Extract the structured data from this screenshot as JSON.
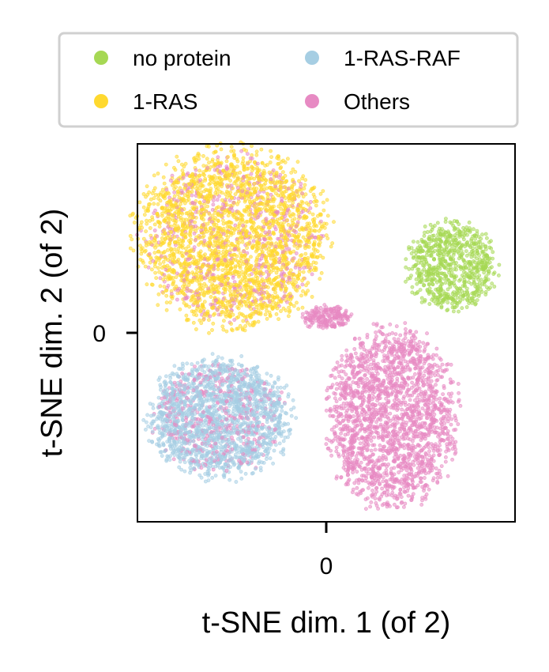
{
  "chart_data": {
    "type": "scatter",
    "title": "",
    "xlabel": "t-SNE dim. 1 (of 2)",
    "ylabel": "t-SNE dim. 2 (of 2)",
    "xlim": [
      -60,
      60
    ],
    "ylim": [
      -60,
      60
    ],
    "xticks": [
      0
    ],
    "xtick_labels": [
      "0"
    ],
    "yticks": [
      0
    ],
    "ytick_labels": [
      "0"
    ],
    "grid": false,
    "legend": {
      "placement": "top (above axes), 2 columns"
    },
    "series": [
      {
        "name": "no protein",
        "color": "#a6d854",
        "clusters": [
          {
            "center": [
              40,
              21
            ],
            "radius": [
              15,
              15
            ],
            "points": 750
          }
        ]
      },
      {
        "name": "1-RAS",
        "color": "#ffd92f",
        "clusters": [
          {
            "center": [
              -30,
              30
            ],
            "radius": [
              32,
              30
            ],
            "points": 2400
          }
        ]
      },
      {
        "name": "1-RAS-RAF",
        "color": "#a6cee3",
        "clusters": [
          {
            "center": [
              -34,
              -27
            ],
            "radius": [
              24,
              20
            ],
            "points": 1700
          }
        ]
      },
      {
        "name": "Others",
        "color": "#e78ac3",
        "clusters": [
          {
            "center": [
              21,
              -27
            ],
            "radius": [
              22,
              30
            ],
            "points": 2000
          },
          {
            "center": [
              0,
              5
            ],
            "radius": [
              8,
              4
            ],
            "points": 200
          },
          {
            "center": [
              -30,
              30
            ],
            "radius": [
              30,
              28
            ],
            "points": 550
          },
          {
            "center": [
              -34,
              -27
            ],
            "radius": [
              22,
              18
            ],
            "points": 420
          }
        ]
      }
    ]
  }
}
